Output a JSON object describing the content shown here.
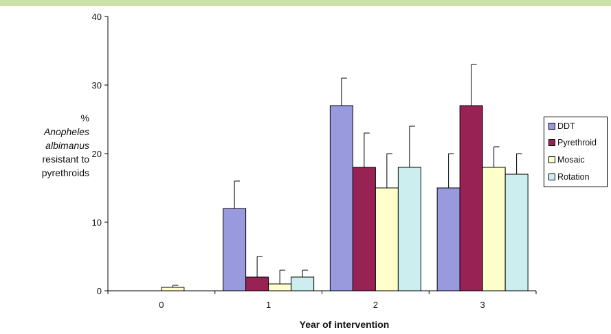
{
  "chart_data": {
    "type": "bar",
    "xlabel": "Year of intervention",
    "ylabel_lines": [
      "%",
      "Anopheles",
      "albimanus",
      "resistant to",
      "pyrethroids"
    ],
    "categories": [
      "0",
      "1",
      "2",
      "3"
    ],
    "yticks": [
      "0",
      "10",
      "20",
      "30",
      "40"
    ],
    "ylim": [
      0,
      40
    ],
    "grid": false,
    "legend_position": "right",
    "series": [
      {
        "name": "DDT",
        "color": "#9999dd",
        "values": [
          0,
          12,
          27,
          15
        ],
        "errors": [
          0,
          4,
          4,
          5
        ]
      },
      {
        "name": "Pyrethroid",
        "color": "#992255",
        "values": [
          0,
          2,
          18,
          27
        ],
        "errors": [
          0,
          3,
          5,
          6
        ]
      },
      {
        "name": "Mosaic",
        "color": "#ffffcc",
        "values": [
          0.5,
          1,
          15,
          18
        ],
        "errors": [
          0.3,
          2,
          5,
          3
        ]
      },
      {
        "name": "Rotation",
        "color": "#cceeee",
        "values": [
          0,
          2,
          18,
          17
        ],
        "errors": [
          0,
          1,
          6,
          3
        ]
      }
    ]
  }
}
